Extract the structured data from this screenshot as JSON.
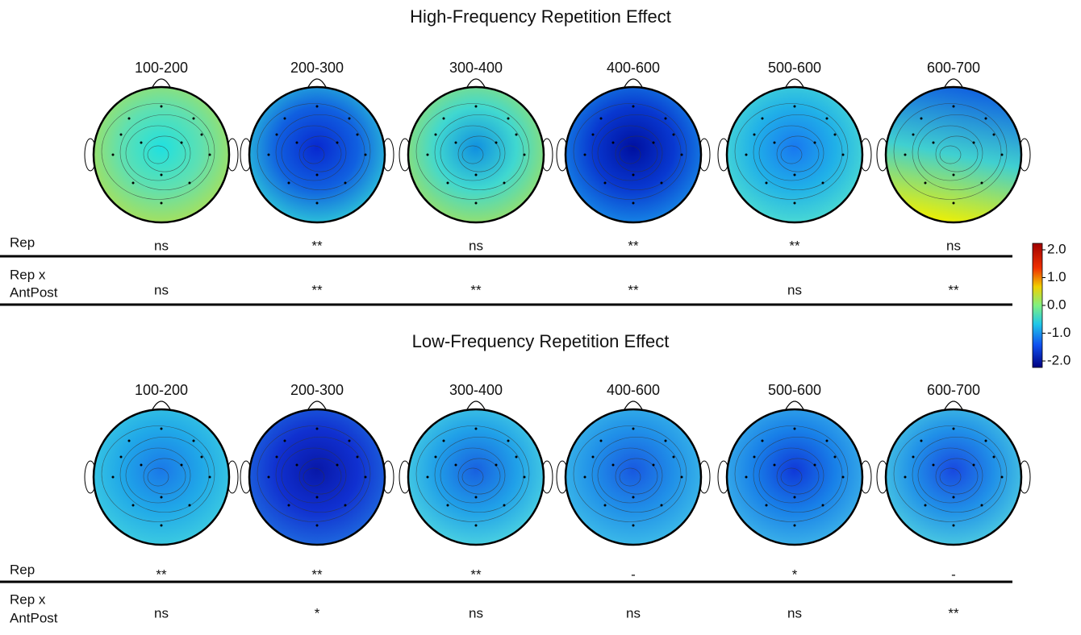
{
  "panels": [
    {
      "title": "High-Frequency Repetition Effect",
      "windows": [
        "100-200",
        "200-300",
        "300-400",
        "400-600",
        "500-600",
        "600-700"
      ],
      "rows": [
        {
          "label": [
            "Rep"
          ],
          "cells": [
            "ns",
            "**",
            "ns",
            "**",
            "**",
            "ns"
          ]
        },
        {
          "label": [
            "Rep x",
            "AntPost"
          ],
          "cells": [
            "ns",
            "**",
            "**",
            "**",
            "ns",
            "**"
          ]
        }
      ]
    },
    {
      "title": "Low-Frequency Repetition Effect",
      "windows": [
        "100-200",
        "200-300",
        "300-400",
        "400-600",
        "500-600",
        "600-700"
      ],
      "rows": [
        {
          "label": [
            "Rep"
          ],
          "cells": [
            "**",
            "**",
            "**",
            "-",
            "*",
            "-"
          ]
        },
        {
          "label": [
            "Rep x",
            "AntPost"
          ],
          "cells": [
            "ns",
            "*",
            "ns",
            "ns",
            "ns",
            "**"
          ]
        }
      ]
    }
  ],
  "colorbar": {
    "lim": [
      -2,
      2
    ],
    "ticks": [
      {
        "value": 2,
        "label": "2.0"
      },
      {
        "value": 1,
        "label": "1.0"
      },
      {
        "value": 0,
        "label": "0.0"
      },
      {
        "value": -1,
        "label": "-1.0"
      },
      {
        "value": -2,
        "label": "-2.0"
      }
    ]
  }
}
